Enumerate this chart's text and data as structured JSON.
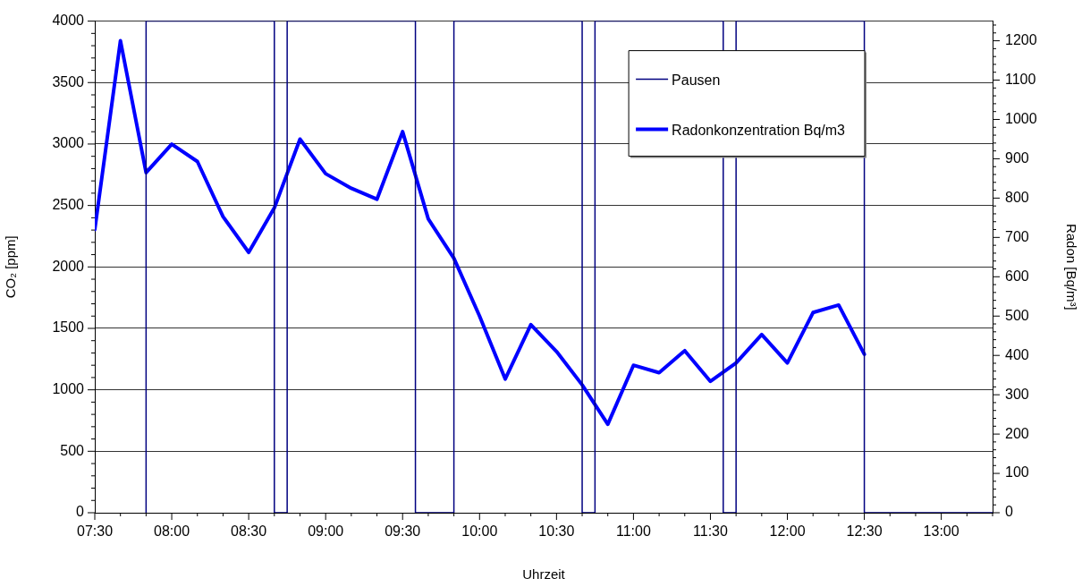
{
  "chart_data": {
    "type": "line",
    "xlabel": "Uhrzeit",
    "ylabel": "CO₂ [ppm]",
    "y2label": "Radon [Bq/m³]",
    "series": [
      {
        "name": "Pausen",
        "color": "#000080",
        "x": [
          7.8333,
          7.8333,
          8.6667,
          8.6667,
          8.75,
          8.75,
          9.5833,
          9.5833,
          9.8333,
          9.8333,
          10.6667,
          10.6667,
          10.75,
          10.75,
          11.5833,
          11.5833,
          11.6667,
          11.6667,
          12.5,
          12.5,
          13.3333
        ],
        "values": [
          0,
          4000,
          4000,
          0,
          0,
          4000,
          4000,
          0,
          0,
          4000,
          4000,
          0,
          0,
          4000,
          4000,
          0,
          0,
          4000,
          4000,
          0,
          0
        ]
      },
      {
        "name": "Radonkonzentration Bq/m3",
        "color": "#0000ff",
        "axis": "y2",
        "x": [
          7.5,
          7.6667,
          7.8333,
          8,
          8.1667,
          8.3333,
          8.5,
          8.6667,
          8.8333,
          9,
          9.1667,
          9.3333,
          9.5,
          9.6667,
          9.8333,
          10,
          10.1667,
          10.3333,
          10.5,
          10.6667,
          10.8333,
          11,
          11.1667,
          11.3333,
          11.5,
          11.6667,
          11.8333,
          12,
          12.1667,
          12.3333,
          12.5
        ],
        "values": [
          720,
          1200,
          865,
          937,
          893,
          753,
          662,
          775,
          950,
          862,
          825,
          797,
          969,
          747,
          647,
          500,
          340,
          478,
          410,
          325,
          225,
          375,
          356,
          412,
          334,
          381,
          453,
          381,
          509,
          528,
          403
        ]
      }
    ],
    "xlim": [
      7.5,
      13.3333
    ],
    "xticks": [
      {
        "value": 7.5,
        "label": "07:30"
      },
      {
        "value": 7.6667,
        "label": null
      },
      {
        "value": 7.8333,
        "label": null
      },
      {
        "value": 8,
        "label": "08:00"
      },
      {
        "value": 8.1667,
        "label": null
      },
      {
        "value": 8.3333,
        "label": null
      },
      {
        "value": 8.5,
        "label": "08:30"
      },
      {
        "value": 8.6667,
        "label": null
      },
      {
        "value": 8.8333,
        "label": null
      },
      {
        "value": 9,
        "label": "09:00"
      },
      {
        "value": 9.1667,
        "label": null
      },
      {
        "value": 9.3333,
        "label": null
      },
      {
        "value": 9.5,
        "label": "09:30"
      },
      {
        "value": 9.6667,
        "label": null
      },
      {
        "value": 9.8333,
        "label": null
      },
      {
        "value": 10,
        "label": "10:00"
      },
      {
        "value": 10.1667,
        "label": null
      },
      {
        "value": 10.3333,
        "label": null
      },
      {
        "value": 10.5,
        "label": "10:30"
      },
      {
        "value": 10.6667,
        "label": null
      },
      {
        "value": 10.8333,
        "label": null
      },
      {
        "value": 11,
        "label": "11:00"
      },
      {
        "value": 11.1667,
        "label": null
      },
      {
        "value": 11.3333,
        "label": null
      },
      {
        "value": 11.5,
        "label": "11:30"
      },
      {
        "value": 11.6667,
        "label": null
      },
      {
        "value": 11.8333,
        "label": null
      },
      {
        "value": 12,
        "label": "12:00"
      },
      {
        "value": 12.1667,
        "label": null
      },
      {
        "value": 12.3333,
        "label": null
      },
      {
        "value": 12.5,
        "label": "12:30"
      },
      {
        "value": 12.6667,
        "label": null
      },
      {
        "value": 12.8333,
        "label": null
      },
      {
        "value": 13,
        "label": "13:00"
      },
      {
        "value": 13.1667,
        "label": null
      },
      {
        "value": 13.3333,
        "label": null
      }
    ],
    "ylim": [
      0,
      4000
    ],
    "yticks": [
      0,
      {
        "value": 100,
        "label": null
      },
      {
        "value": 200,
        "label": null
      },
      {
        "value": 300,
        "label": null
      },
      {
        "value": 400,
        "label": null
      },
      500,
      {
        "value": 600,
        "label": null
      },
      {
        "value": 700,
        "label": null
      },
      {
        "value": 800,
        "label": null
      },
      {
        "value": 900,
        "label": null
      },
      1000,
      {
        "value": 1100,
        "label": null
      },
      {
        "value": 1200,
        "label": null
      },
      {
        "value": 1300,
        "label": null
      },
      {
        "value": 1400,
        "label": null
      },
      1500,
      {
        "value": 1600,
        "label": null
      },
      {
        "value": 1700,
        "label": null
      },
      {
        "value": 1800,
        "label": null
      },
      {
        "value": 1900,
        "label": null
      },
      2000,
      {
        "value": 2100,
        "label": null
      },
      {
        "value": 2200,
        "label": null
      },
      {
        "value": 2300,
        "label": null
      },
      {
        "value": 2400,
        "label": null
      },
      2500,
      {
        "value": 2600,
        "label": null
      },
      {
        "value": 2700,
        "label": null
      },
      {
        "value": 2800,
        "label": null
      },
      {
        "value": 2900,
        "label": null
      },
      3000,
      {
        "value": 3100,
        "label": null
      },
      {
        "value": 3200,
        "label": null
      },
      {
        "value": 3300,
        "label": null
      },
      {
        "value": 3400,
        "label": null
      },
      3500,
      {
        "value": 3600,
        "label": null
      },
      {
        "value": 3700,
        "label": null
      },
      {
        "value": 3800,
        "label": null
      },
      {
        "value": 3900,
        "label": null
      },
      4000
    ],
    "y2lim": [
      0,
      1250
    ],
    "y2ticks": [
      0,
      {
        "value": 20,
        "label": null
      },
      {
        "value": 40,
        "label": null
      },
      {
        "value": 60,
        "label": null
      },
      {
        "value": 80,
        "label": null
      },
      100,
      {
        "value": 120,
        "label": null
      },
      {
        "value": 140,
        "label": null
      },
      {
        "value": 160,
        "label": null
      },
      {
        "value": 180,
        "label": null
      },
      200,
      {
        "value": 220,
        "label": null
      },
      {
        "value": 240,
        "label": null
      },
      {
        "value": 260,
        "label": null
      },
      {
        "value": 280,
        "label": null
      },
      300,
      {
        "value": 320,
        "label": null
      },
      {
        "value": 340,
        "label": null
      },
      {
        "value": 360,
        "label": null
      },
      {
        "value": 380,
        "label": null
      },
      400,
      {
        "value": 420,
        "label": null
      },
      {
        "value": 440,
        "label": null
      },
      {
        "value": 460,
        "label": null
      },
      {
        "value": 480,
        "label": null
      },
      500,
      {
        "value": 520,
        "label": null
      },
      {
        "value": 540,
        "label": null
      },
      {
        "value": 560,
        "label": null
      },
      {
        "value": 580,
        "label": null
      },
      600,
      {
        "value": 620,
        "label": null
      },
      {
        "value": 640,
        "label": null
      },
      {
        "value": 660,
        "label": null
      },
      {
        "value": 680,
        "label": null
      },
      700,
      {
        "value": 720,
        "label": null
      },
      {
        "value": 740,
        "label": null
      },
      {
        "value": 760,
        "label": null
      },
      {
        "value": 780,
        "label": null
      },
      800,
      {
        "value": 820,
        "label": null
      },
      {
        "value": 840,
        "label": null
      },
      {
        "value": 860,
        "label": null
      },
      {
        "value": 880,
        "label": null
      },
      900,
      {
        "value": 920,
        "label": null
      },
      {
        "value": 940,
        "label": null
      },
      {
        "value": 960,
        "label": null
      },
      {
        "value": 980,
        "label": null
      },
      1000,
      {
        "value": 1020,
        "label": null
      },
      {
        "value": 1040,
        "label": null
      },
      {
        "value": 1060,
        "label": null
      },
      {
        "value": 1080,
        "label": null
      },
      1100,
      {
        "value": 1120,
        "label": null
      },
      {
        "value": 1140,
        "label": null
      },
      {
        "value": 1160,
        "label": null
      },
      {
        "value": 1180,
        "label": null
      },
      1200,
      {
        "value": 1220,
        "label": null
      },
      {
        "value": 1240,
        "label": null
      }
    ],
    "grid": "y",
    "legend": "top right",
    "marker": "none",
    "line_style": "solid"
  }
}
